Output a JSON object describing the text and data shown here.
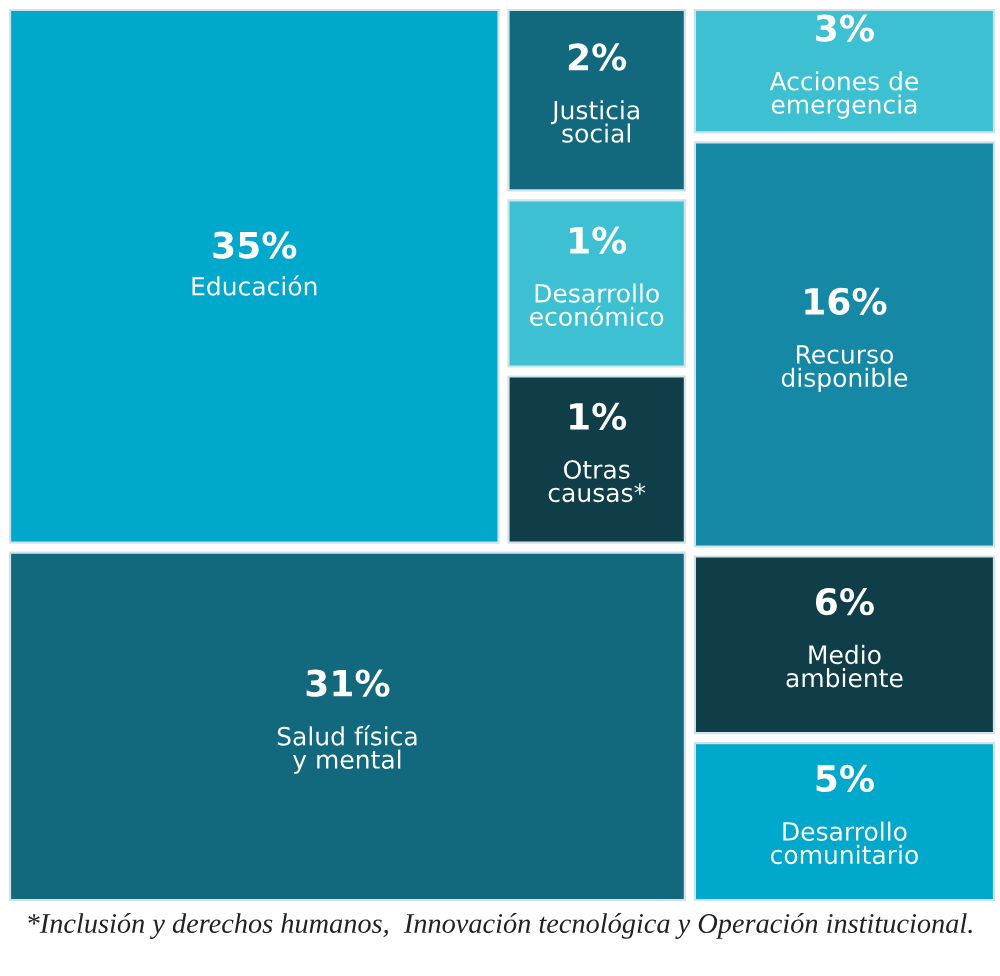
{
  "chart_data": {
    "type": "other",
    "categories": [
      "Educación",
      "Justicia\nsocial",
      "Desarrollo\neconómico",
      "Otras\ncausas*",
      "Salud física\ny mental",
      "Acciones de\nemergencia",
      "Recurso\ndisponible",
      "Medio\nambiente",
      "Desarrollo\ncomunitario"
    ],
    "values": [
      35,
      2,
      1,
      1,
      31,
      3,
      16,
      6,
      5
    ],
    "value_labels": [
      "35%",
      "2%",
      "1%",
      "1%",
      "31%",
      "3%",
      "16%",
      "6%",
      "5%"
    ],
    "colors": [
      "#00a8cc",
      "#12687d",
      "#3cc0d2",
      "#0f3d48",
      "#12687d",
      "#3cc0d2",
      "#1488a5",
      "#0f3d48",
      "#00a8cc"
    ],
    "annotations": [
      "*Inclusión y derechos humanos,  Innovación tecnológica y Operación institucional."
    ]
  }
}
